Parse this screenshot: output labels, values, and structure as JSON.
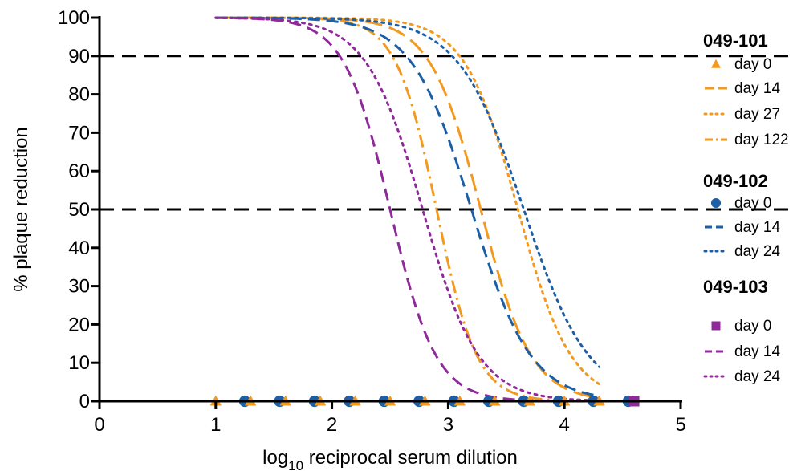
{
  "chart_data": {
    "type": "line",
    "xlabel": {
      "prefix": "log",
      "subscript": "10",
      "rest": " reciprocal serum dilution"
    },
    "ylabel": "% plaque reduction",
    "xlim": [
      0,
      5
    ],
    "ylim": [
      0,
      100
    ],
    "xticks": [
      0,
      1,
      2,
      3,
      4,
      5
    ],
    "yticks": [
      0,
      10,
      20,
      30,
      40,
      50,
      60,
      70,
      80,
      90,
      100
    ],
    "grid": false,
    "legend_position": "right",
    "reference_lines": [
      90,
      50
    ],
    "colors": {
      "049-101": "#f39a1e",
      "049-102": "#1d5fa6",
      "049-103": "#8e2b99"
    },
    "groups": [
      {
        "name": "049-101",
        "series": [
          {
            "name": "day 0",
            "style": "marker",
            "marker": "triangle",
            "x": [
              1.0,
              1.3,
              1.6,
              1.9,
              2.2,
              2.5,
              2.8,
              3.1,
              3.4,
              3.7,
              4.0,
              4.3
            ],
            "y": [
              0,
              0,
              0,
              0,
              0,
              0,
              0,
              0,
              0,
              0,
              0,
              0
            ]
          },
          {
            "name": "day 14",
            "style": "longdash",
            "x_start": 1.0,
            "x_end": 4.3,
            "ec50": 3.28,
            "hill": 2.0
          },
          {
            "name": "day 27",
            "style": "dotted",
            "x_start": 1.0,
            "x_end": 4.3,
            "ec50": 3.6,
            "hill": 1.9
          },
          {
            "name": "day 122",
            "style": "dashdot",
            "x_start": 1.0,
            "x_end": 4.3,
            "ec50": 2.9,
            "hill": 2.5
          }
        ]
      },
      {
        "name": "049-102",
        "series": [
          {
            "name": "day 0",
            "style": "marker",
            "marker": "circle",
            "x": [
              1.25,
              1.55,
              1.85,
              2.15,
              2.45,
              2.75,
              3.05,
              3.35,
              3.65,
              3.95,
              4.25,
              4.55
            ],
            "y": [
              0,
              0,
              0,
              0,
              0,
              0,
              0,
              0,
              0,
              0,
              0,
              0
            ]
          },
          {
            "name": "day 14",
            "style": "dashed",
            "x_start": 1.0,
            "x_end": 4.3,
            "ec50": 3.2,
            "hill": 1.7
          },
          {
            "name": "day 24",
            "style": "dotted",
            "x_start": 1.0,
            "x_end": 4.3,
            "ec50": 3.65,
            "hill": 1.55
          }
        ]
      },
      {
        "name": "049-103",
        "series": [
          {
            "name": "day 0",
            "style": "marker",
            "marker": "square",
            "x": [
              4.6
            ],
            "y": [
              0
            ]
          },
          {
            "name": "day 14",
            "style": "dashed",
            "x_start": 1.0,
            "x_end": 4.3,
            "ec50": 2.5,
            "hill": 2.2
          },
          {
            "name": "day 24",
            "style": "dotted",
            "x_start": 1.0,
            "x_end": 4.3,
            "ec50": 2.78,
            "hill": 1.8
          }
        ]
      }
    ]
  }
}
